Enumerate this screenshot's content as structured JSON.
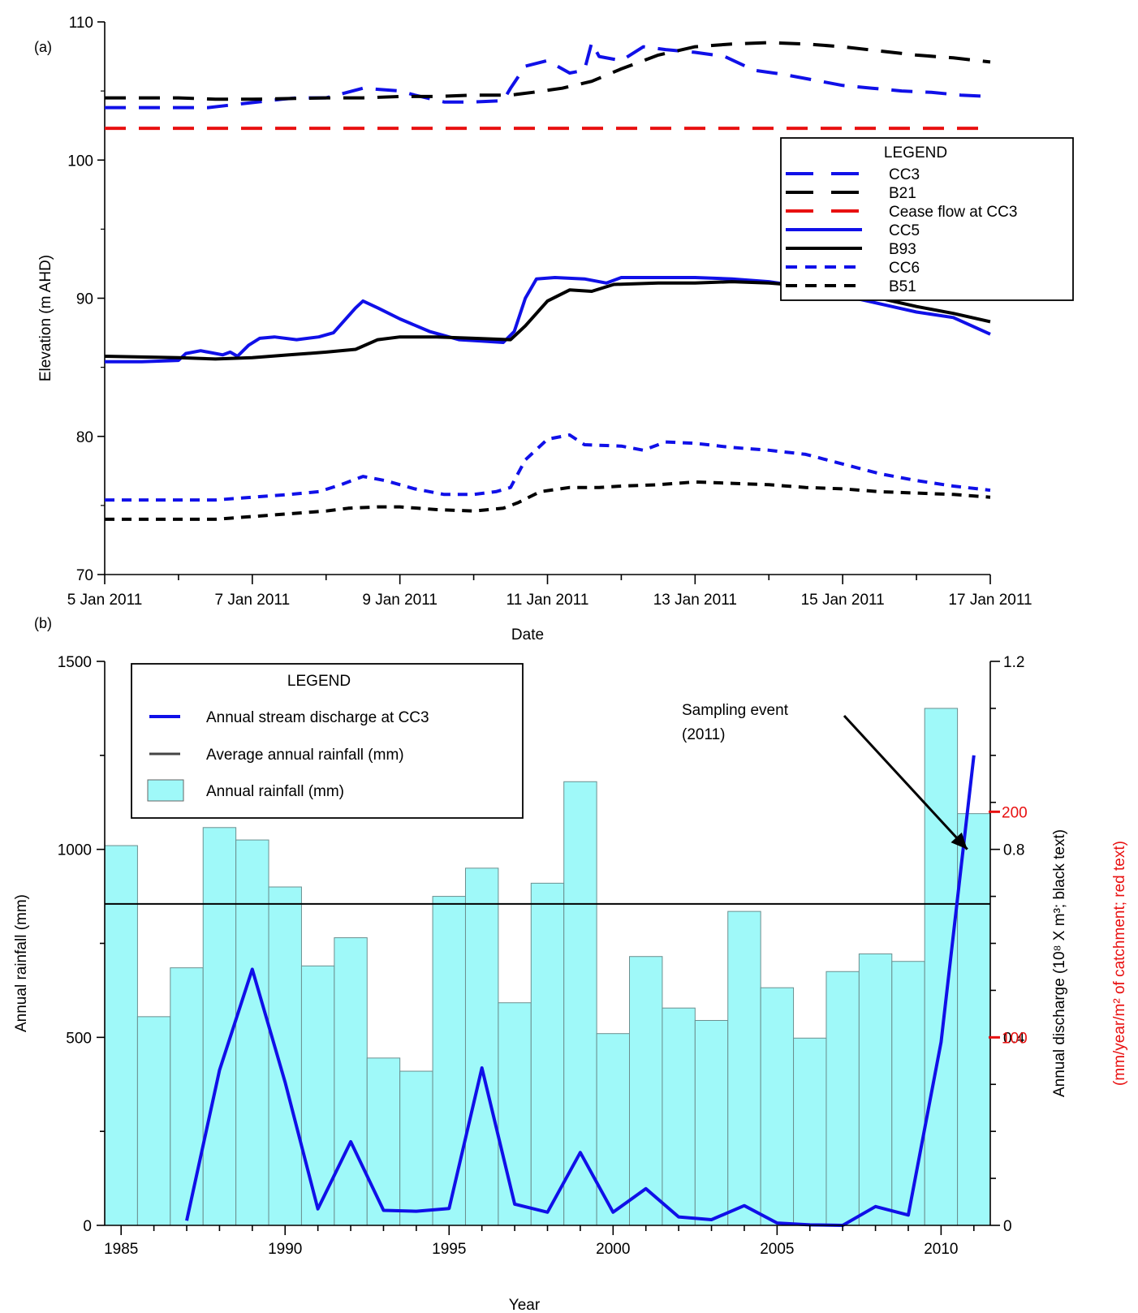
{
  "chart_data": [
    {
      "panel_label": "(a)",
      "type": "line",
      "xlabel": "Date",
      "ylabel": "Elevation (m AHD)",
      "x_unit": "days from 5 Jan 2011 (axis prints dates)",
      "xlim": [
        0,
        12
      ],
      "ylim": [
        70,
        110
      ],
      "x_tick_labels": [
        "5 Jan 2011",
        "7 Jan 2011",
        "9 Jan 2011",
        "11 Jan 2011",
        "13 Jan 2011",
        "15 Jan 2011",
        "17 Jan 2011"
      ],
      "y_ticks": [
        70,
        80,
        90,
        100,
        110
      ],
      "legend": {
        "title": "LEGEND",
        "placement": "upper-right"
      },
      "series": [
        {
          "name": "CC3",
          "color": "#1010e8",
          "style": "long-dash",
          "points": [
            [
              0,
              103.8
            ],
            [
              0.9,
              103.8
            ],
            [
              1.4,
              103.8
            ],
            [
              2.4,
              104.4
            ],
            [
              2.6,
              104.5
            ],
            [
              3.0,
              104.5
            ],
            [
              3.5,
              105.2
            ],
            [
              4.0,
              105.0
            ],
            [
              4.2,
              104.7
            ],
            [
              4.6,
              104.2
            ],
            [
              5.0,
              104.2
            ],
            [
              5.4,
              104.3
            ],
            [
              5.5,
              105.2
            ],
            [
              5.7,
              106.8
            ],
            [
              6.0,
              107.2
            ],
            [
              6.3,
              106.3
            ],
            [
              6.5,
              106.5
            ],
            [
              6.6,
              108.5
            ],
            [
              6.7,
              107.5
            ],
            [
              7.0,
              107.2
            ],
            [
              7.3,
              108.2
            ],
            [
              7.6,
              108.0
            ],
            [
              8.0,
              107.8
            ],
            [
              8.4,
              107.5
            ],
            [
              8.8,
              106.5
            ],
            [
              9.2,
              106.2
            ],
            [
              9.6,
              105.8
            ],
            [
              10.0,
              105.4
            ],
            [
              10.4,
              105.2
            ],
            [
              10.8,
              105.0
            ],
            [
              11.2,
              104.9
            ],
            [
              11.6,
              104.7
            ],
            [
              12.0,
              104.6
            ]
          ]
        },
        {
          "name": "B21",
          "color": "#000000",
          "style": "long-dash",
          "points": [
            [
              0,
              104.5
            ],
            [
              1.0,
              104.5
            ],
            [
              1.5,
              104.4
            ],
            [
              2.0,
              104.4
            ],
            [
              3.0,
              104.5
            ],
            [
              3.5,
              104.5
            ],
            [
              4.0,
              104.6
            ],
            [
              4.5,
              104.6
            ],
            [
              5.0,
              104.7
            ],
            [
              5.5,
              104.7
            ],
            [
              5.8,
              104.9
            ],
            [
              6.2,
              105.2
            ],
            [
              6.6,
              105.7
            ],
            [
              7.0,
              106.6
            ],
            [
              7.5,
              107.6
            ],
            [
              8.0,
              108.2
            ],
            [
              8.5,
              108.4
            ],
            [
              9.0,
              108.5
            ],
            [
              9.5,
              108.4
            ],
            [
              10.0,
              108.2
            ],
            [
              10.5,
              107.9
            ],
            [
              11.0,
              107.6
            ],
            [
              11.5,
              107.4
            ],
            [
              12.0,
              107.1
            ]
          ]
        },
        {
          "name": "Cease flow at CC3",
          "color": "#e81010",
          "style": "long-dash",
          "points": [
            [
              0,
              102.3
            ],
            [
              12.0,
              102.3
            ]
          ]
        },
        {
          "name": "CC5",
          "color": "#1010e8",
          "style": "solid",
          "points": [
            [
              0,
              85.4
            ],
            [
              0.5,
              85.4
            ],
            [
              1.0,
              85.5
            ],
            [
              1.1,
              86.0
            ],
            [
              1.3,
              86.2
            ],
            [
              1.6,
              85.9
            ],
            [
              1.7,
              86.1
            ],
            [
              1.8,
              85.8
            ],
            [
              1.95,
              86.6
            ],
            [
              2.1,
              87.1
            ],
            [
              2.3,
              87.2
            ],
            [
              2.6,
              87.0
            ],
            [
              2.9,
              87.2
            ],
            [
              3.1,
              87.5
            ],
            [
              3.25,
              88.4
            ],
            [
              3.4,
              89.3
            ],
            [
              3.5,
              89.8
            ],
            [
              3.7,
              89.3
            ],
            [
              4.0,
              88.5
            ],
            [
              4.4,
              87.6
            ],
            [
              4.8,
              87.0
            ],
            [
              5.1,
              86.9
            ],
            [
              5.4,
              86.8
            ],
            [
              5.55,
              87.6
            ],
            [
              5.7,
              90.0
            ],
            [
              5.85,
              91.4
            ],
            [
              6.1,
              91.5
            ],
            [
              6.5,
              91.4
            ],
            [
              6.8,
              91.1
            ],
            [
              7.0,
              91.5
            ],
            [
              7.5,
              91.5
            ],
            [
              8.0,
              91.5
            ],
            [
              8.5,
              91.4
            ],
            [
              9.0,
              91.2
            ],
            [
              9.5,
              90.8
            ],
            [
              10.0,
              90.2
            ],
            [
              10.5,
              89.6
            ],
            [
              11.0,
              89.0
            ],
            [
              11.5,
              88.6
            ],
            [
              12.0,
              87.4
            ]
          ]
        },
        {
          "name": "B93",
          "color": "#000000",
          "style": "solid",
          "points": [
            [
              0,
              85.8
            ],
            [
              1.0,
              85.7
            ],
            [
              1.5,
              85.6
            ],
            [
              2.0,
              85.7
            ],
            [
              2.5,
              85.9
            ],
            [
              3.0,
              86.1
            ],
            [
              3.4,
              86.3
            ],
            [
              3.7,
              87.0
            ],
            [
              4.0,
              87.2
            ],
            [
              4.5,
              87.2
            ],
            [
              5.0,
              87.1
            ],
            [
              5.5,
              87.0
            ],
            [
              5.7,
              88.0
            ],
            [
              6.0,
              89.8
            ],
            [
              6.3,
              90.6
            ],
            [
              6.6,
              90.5
            ],
            [
              6.9,
              91.0
            ],
            [
              7.5,
              91.1
            ],
            [
              8.0,
              91.1
            ],
            [
              8.5,
              91.2
            ],
            [
              9.0,
              91.1
            ],
            [
              9.5,
              90.9
            ],
            [
              10.0,
              90.5
            ],
            [
              10.5,
              90.0
            ],
            [
              11.0,
              89.4
            ],
            [
              11.5,
              88.9
            ],
            [
              12.0,
              88.3
            ]
          ]
        },
        {
          "name": "CC6",
          "color": "#1010e8",
          "style": "short-dash",
          "points": [
            [
              0,
              75.4
            ],
            [
              1.0,
              75.4
            ],
            [
              1.5,
              75.4
            ],
            [
              2.0,
              75.6
            ],
            [
              2.5,
              75.8
            ],
            [
              2.9,
              76.0
            ],
            [
              3.2,
              76.5
            ],
            [
              3.5,
              77.1
            ],
            [
              3.8,
              76.8
            ],
            [
              4.2,
              76.2
            ],
            [
              4.6,
              75.8
            ],
            [
              5.0,
              75.8
            ],
            [
              5.3,
              76.0
            ],
            [
              5.5,
              76.3
            ],
            [
              5.7,
              78.3
            ],
            [
              6.0,
              79.8
            ],
            [
              6.3,
              80.1
            ],
            [
              6.5,
              79.4
            ],
            [
              7.0,
              79.3
            ],
            [
              7.3,
              79.0
            ],
            [
              7.6,
              79.6
            ],
            [
              8.0,
              79.5
            ],
            [
              8.5,
              79.2
            ],
            [
              9.0,
              79.0
            ],
            [
              9.5,
              78.7
            ],
            [
              10.0,
              78.0
            ],
            [
              10.5,
              77.3
            ],
            [
              11.0,
              76.8
            ],
            [
              11.5,
              76.4
            ],
            [
              12.0,
              76.1
            ]
          ]
        },
        {
          "name": "B51",
          "color": "#000000",
          "style": "short-dash",
          "points": [
            [
              0,
              74.0
            ],
            [
              1.0,
              74.0
            ],
            [
              1.5,
              74.0
            ],
            [
              2.0,
              74.2
            ],
            [
              2.5,
              74.4
            ],
            [
              3.0,
              74.6
            ],
            [
              3.3,
              74.8
            ],
            [
              3.7,
              74.9
            ],
            [
              4.0,
              74.9
            ],
            [
              4.5,
              74.7
            ],
            [
              5.0,
              74.6
            ],
            [
              5.4,
              74.8
            ],
            [
              5.6,
              75.2
            ],
            [
              5.9,
              76.0
            ],
            [
              6.3,
              76.3
            ],
            [
              6.7,
              76.3
            ],
            [
              7.0,
              76.4
            ],
            [
              7.5,
              76.5
            ],
            [
              8.0,
              76.7
            ],
            [
              8.5,
              76.6
            ],
            [
              9.0,
              76.5
            ],
            [
              9.5,
              76.3
            ],
            [
              10.0,
              76.2
            ],
            [
              10.5,
              76.0
            ],
            [
              11.0,
              75.9
            ],
            [
              11.5,
              75.8
            ],
            [
              12.0,
              75.6
            ]
          ]
        }
      ]
    },
    {
      "panel_label": "(b)",
      "type": "bar",
      "xlabel": "Year",
      "ylabel": "Annual rainfall (mm)",
      "ylabel_right_black": "Annual discharge (10⁸ X m³; black text)",
      "ylabel_right_red": "(mm/year/m² of catchment; red text)",
      "xlim": [
        1984.5,
        2011.5
      ],
      "ylim": [
        0,
        1500
      ],
      "y2lim": [
        0,
        1.2
      ],
      "x_ticks": [
        1985,
        1990,
        1995,
        2000,
        2005,
        2010
      ],
      "y_ticks": [
        0,
        500,
        1000,
        1500
      ],
      "y2_ticks": [
        0,
        0.4,
        0.8,
        1.2
      ],
      "y2_tick_labels": [
        "0",
        "0.4",
        "0.8",
        "1.2"
      ],
      "y2_minor_step": 0.1,
      "red_ticks": [
        {
          "value": 100,
          "label": "100",
          "pos": 0.4
        },
        {
          "value": 200,
          "label": "200",
          "pos": 0.88
        }
      ],
      "legend": {
        "title": "LEGEND",
        "placement": "upper-left",
        "items": [
          "Annual stream discharge at CC3",
          "Average annual rainfall (mm)",
          "Annual rainfall (mm)"
        ]
      },
      "annotation": {
        "text": [
          "Sampling event",
          "(2011)"
        ],
        "points_to": [
          2010.8,
          0.8
        ]
      },
      "average_rainfall": 855,
      "bar_color": "#9ff9f9",
      "rainfall": {
        "years": [
          1985,
          1986,
          1987,
          1988,
          1989,
          1990,
          1991,
          1992,
          1993,
          1994,
          1995,
          1996,
          1997,
          1998,
          1999,
          2000,
          2001,
          2002,
          2003,
          2004,
          2005,
          2006,
          2007,
          2008,
          2009,
          2010,
          2011
        ],
        "values": [
          1010,
          555,
          685,
          1058,
          1025,
          900,
          690,
          765,
          445,
          410,
          875,
          950,
          592,
          910,
          1180,
          510,
          715,
          578,
          545,
          835,
          632,
          498,
          675,
          722,
          702,
          1375,
          1095
        ]
      },
      "discharge": {
        "name": "Annual stream discharge at CC3",
        "color": "#1010e8",
        "years": [
          1987,
          1988,
          1989,
          1990,
          1991,
          1992,
          1993,
          1994,
          1995,
          1996,
          1997,
          1998,
          1999,
          2000,
          2001,
          2002,
          2003,
          2004,
          2005,
          2006,
          2007,
          2008,
          2009,
          2010,
          2011
        ],
        "values": [
          0.01,
          0.33,
          0.545,
          0.305,
          0.035,
          0.178,
          0.032,
          0.03,
          0.036,
          0.335,
          0.045,
          0.028,
          0.155,
          0.028,
          0.078,
          0.018,
          0.012,
          0.042,
          0.005,
          0.001,
          0.0,
          0.04,
          0.022,
          0.39,
          1.0
        ]
      }
    }
  ]
}
